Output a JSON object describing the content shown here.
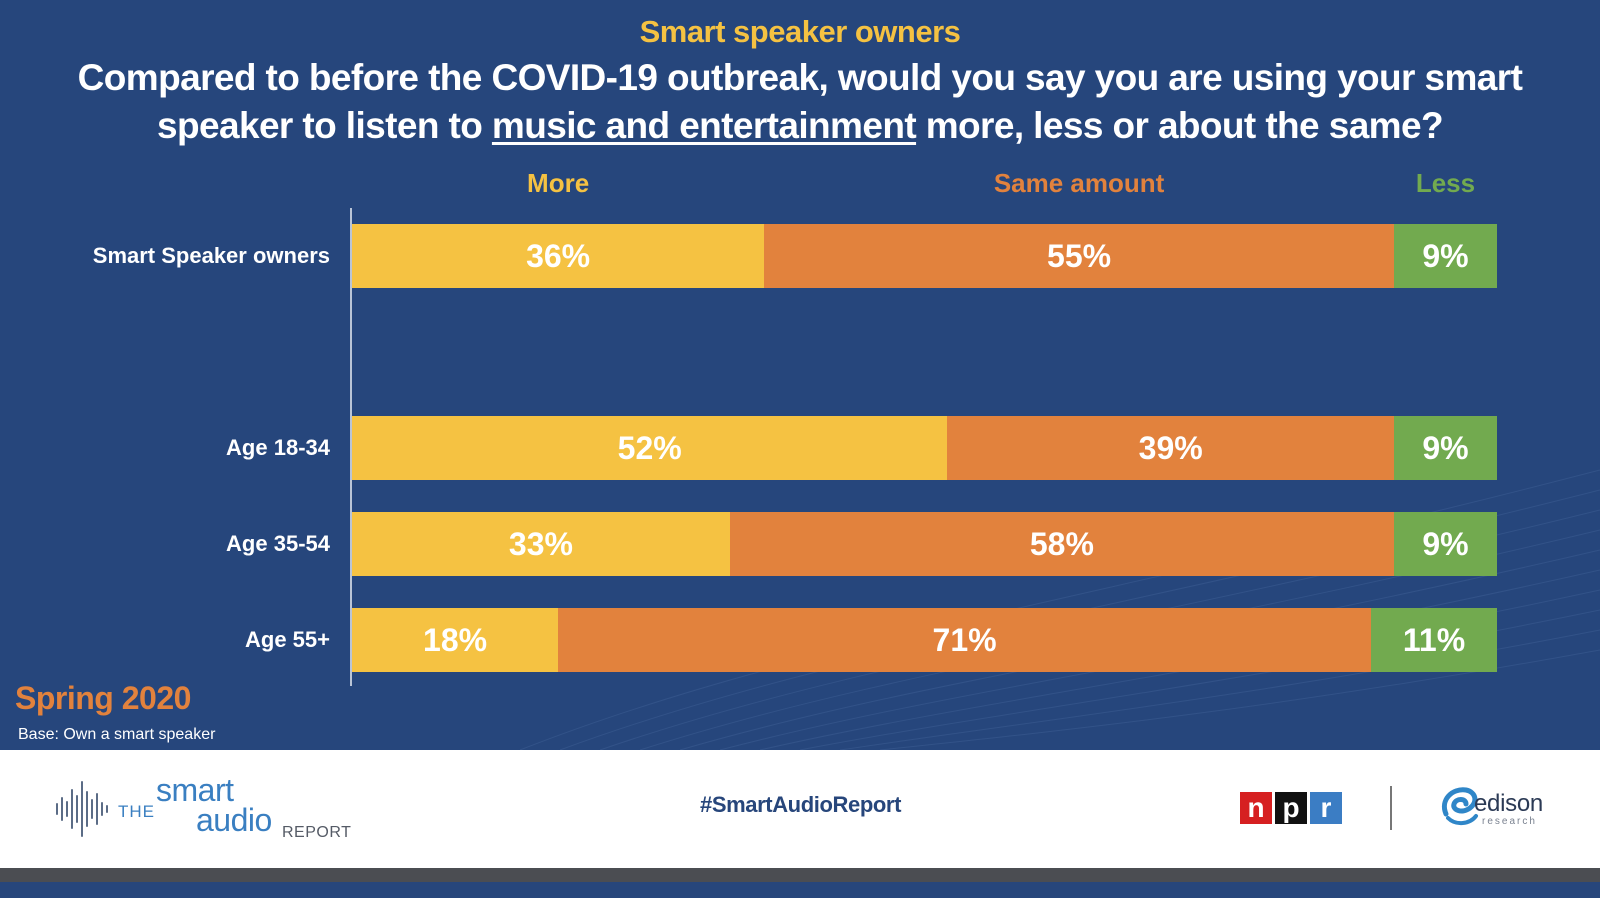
{
  "kicker": "Smart speaker owners",
  "question": {
    "before": "Compared to before the COVID-19 outbreak, would you say you are using your smart speaker to listen to ",
    "underlined": "music and entertainment",
    "after": " more, less or about the same?"
  },
  "colors": {
    "more": "#f5c242",
    "same": "#e2823d",
    "less": "#72aa4f",
    "background": "#26467c"
  },
  "chart_data": {
    "type": "bar",
    "orientation": "horizontal",
    "stacked": true,
    "title": "Compared to before the COVID-19 outbreak, would you say you are using your smart speaker to listen to music and entertainment more, less or about the same?",
    "categories": [
      "Smart Speaker owners",
      "Age 18-34",
      "Age 35-54",
      "Age 55+"
    ],
    "series": [
      {
        "name": "More",
        "color": "#f5c242",
        "values": [
          36,
          52,
          33,
          18
        ],
        "labels": [
          "36%",
          "52%",
          "33%",
          "18%"
        ]
      },
      {
        "name": "Same amount",
        "color": "#e2823d",
        "values": [
          55,
          39,
          58,
          71
        ],
        "labels": [
          "55%",
          "39%",
          "58%",
          "71%"
        ]
      },
      {
        "name": "Less",
        "color": "#72aa4f",
        "values": [
          9,
          9,
          9,
          11
        ],
        "labels": [
          "9%",
          "9%",
          "9%",
          "11%"
        ]
      }
    ],
    "xlim": [
      0,
      100
    ],
    "legend": "top"
  },
  "season": "Spring 2020",
  "base": "Base: Own a smart speaker",
  "footer": {
    "logo": {
      "the": "THE",
      "smart": "smart",
      "audio": "audio",
      "report": "REPORT"
    },
    "hashtag": "#SmartAudioReport",
    "npr_letters": [
      "n",
      "p",
      "r"
    ],
    "edison": {
      "word": "edison",
      "sub": "research"
    }
  }
}
